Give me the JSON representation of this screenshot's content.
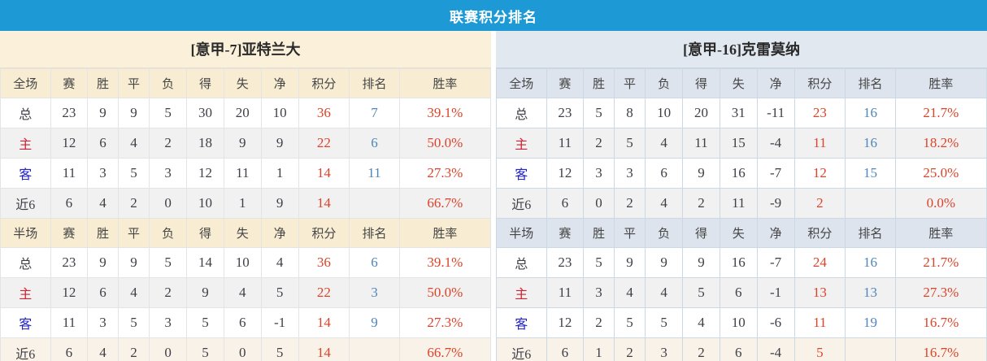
{
  "header": {
    "title": "联赛积分排名"
  },
  "colors": {
    "accent-blue": "#1d9ad6",
    "beige-title": "#fbf0d9",
    "beige-header": "#f8edd3",
    "blue-title": "#e2e8f0",
    "blue-header": "#dde4ed",
    "row-alt": "#f1f1f1",
    "row-last": "#f9f2e8",
    "val-points": "#dc432a",
    "val-rank": "#4f86ba",
    "label-home": "#cc2233",
    "label-away": "#2323c4",
    "text-dark": "#3f3f48"
  },
  "columns": {
    "stat_headers": [
      "赛",
      "胜",
      "平",
      "负",
      "得",
      "失",
      "净",
      "积分",
      "排名",
      "胜率"
    ]
  },
  "tables": [
    {
      "team": "[意甲-7]亚特兰大",
      "sections": [
        {
          "scope_label": "全场",
          "rows": [
            {
              "label": "总",
              "cells": [
                "23",
                "9",
                "9",
                "5",
                "30",
                "20",
                "10"
              ],
              "points": "36",
              "rank": "7",
              "rate": "39.1%"
            },
            {
              "label": "主",
              "cells": [
                "12",
                "6",
                "4",
                "2",
                "18",
                "9",
                "9"
              ],
              "points": "22",
              "rank": "6",
              "rate": "50.0%"
            },
            {
              "label": "客",
              "cells": [
                "11",
                "3",
                "5",
                "3",
                "12",
                "11",
                "1"
              ],
              "points": "14",
              "rank": "11",
              "rate": "27.3%"
            },
            {
              "label": "近6",
              "cells": [
                "6",
                "4",
                "2",
                "0",
                "10",
                "1",
                "9"
              ],
              "points": "14",
              "rank": "",
              "rate": "66.7%"
            }
          ]
        },
        {
          "scope_label": "半场",
          "rows": [
            {
              "label": "总",
              "cells": [
                "23",
                "9",
                "9",
                "5",
                "14",
                "10",
                "4"
              ],
              "points": "36",
              "rank": "6",
              "rate": "39.1%"
            },
            {
              "label": "主",
              "cells": [
                "12",
                "6",
                "4",
                "2",
                "9",
                "4",
                "5"
              ],
              "points": "22",
              "rank": "3",
              "rate": "50.0%"
            },
            {
              "label": "客",
              "cells": [
                "11",
                "3",
                "5",
                "3",
                "5",
                "6",
                "-1"
              ],
              "points": "14",
              "rank": "9",
              "rate": "27.3%"
            },
            {
              "label": "近6",
              "cells": [
                "6",
                "4",
                "2",
                "0",
                "5",
                "0",
                "5"
              ],
              "points": "14",
              "rank": "",
              "rate": "66.7%"
            }
          ]
        }
      ]
    },
    {
      "team": "[意甲-16]克雷莫纳",
      "sections": [
        {
          "scope_label": "全场",
          "rows": [
            {
              "label": "总",
              "cells": [
                "23",
                "5",
                "8",
                "10",
                "20",
                "31",
                "-11"
              ],
              "points": "23",
              "rank": "16",
              "rate": "21.7%"
            },
            {
              "label": "主",
              "cells": [
                "11",
                "2",
                "5",
                "4",
                "11",
                "15",
                "-4"
              ],
              "points": "11",
              "rank": "16",
              "rate": "18.2%"
            },
            {
              "label": "客",
              "cells": [
                "12",
                "3",
                "3",
                "6",
                "9",
                "16",
                "-7"
              ],
              "points": "12",
              "rank": "15",
              "rate": "25.0%"
            },
            {
              "label": "近6",
              "cells": [
                "6",
                "0",
                "2",
                "4",
                "2",
                "11",
                "-9"
              ],
              "points": "2",
              "rank": "",
              "rate": "0.0%"
            }
          ]
        },
        {
          "scope_label": "半场",
          "rows": [
            {
              "label": "总",
              "cells": [
                "23",
                "5",
                "9",
                "9",
                "9",
                "16",
                "-7"
              ],
              "points": "24",
              "rank": "16",
              "rate": "21.7%"
            },
            {
              "label": "主",
              "cells": [
                "11",
                "3",
                "4",
                "4",
                "5",
                "6",
                "-1"
              ],
              "points": "13",
              "rank": "13",
              "rate": "27.3%"
            },
            {
              "label": "客",
              "cells": [
                "12",
                "2",
                "5",
                "5",
                "4",
                "10",
                "-6"
              ],
              "points": "11",
              "rank": "19",
              "rate": "16.7%"
            },
            {
              "label": "近6",
              "cells": [
                "6",
                "1",
                "2",
                "3",
                "2",
                "6",
                "-4"
              ],
              "points": "5",
              "rank": "",
              "rate": "16.7%"
            }
          ]
        }
      ]
    }
  ]
}
